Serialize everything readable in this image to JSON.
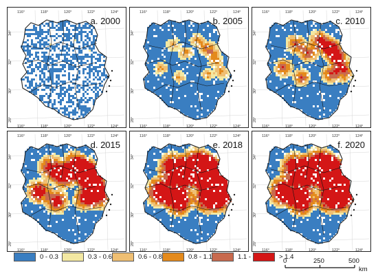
{
  "panels": [
    {
      "label": "a. 2000",
      "level": 0
    },
    {
      "label": "b. 2005",
      "level": 1
    },
    {
      "label": "c. 2010",
      "level": 2
    },
    {
      "label": "d. 2015",
      "level": 3
    },
    {
      "label": "e. 2018",
      "level": 4
    },
    {
      "label": "f. 2020",
      "level": 4
    }
  ],
  "axes": {
    "lon_ticks": [
      "116°",
      "118°",
      "120°",
      "122°",
      "124°"
    ],
    "lat_ticks": [
      "34°",
      "32°",
      "30°",
      "28°"
    ]
  },
  "legend": [
    {
      "label": "0 - 0.3",
      "color": "#3a7ec1"
    },
    {
      "label": "0.3 - 0.6",
      "color": "#f3e8a2"
    },
    {
      "label": "0.6 - 0.8",
      "color": "#efbf73"
    },
    {
      "label": "0.8 - 1.1",
      "color": "#e48a1c"
    },
    {
      "label": "1.1 - 1.4",
      "color": "#c86a4e"
    },
    {
      "label": "> 1.4",
      "color": "#d41616"
    }
  ],
  "scale": {
    "start": "0",
    "mid": "250",
    "end": "500",
    "unit": "km"
  },
  "colors": {
    "water": "#ffffff",
    "boundary": "#222222",
    "inner_boundary": "#111111"
  }
}
